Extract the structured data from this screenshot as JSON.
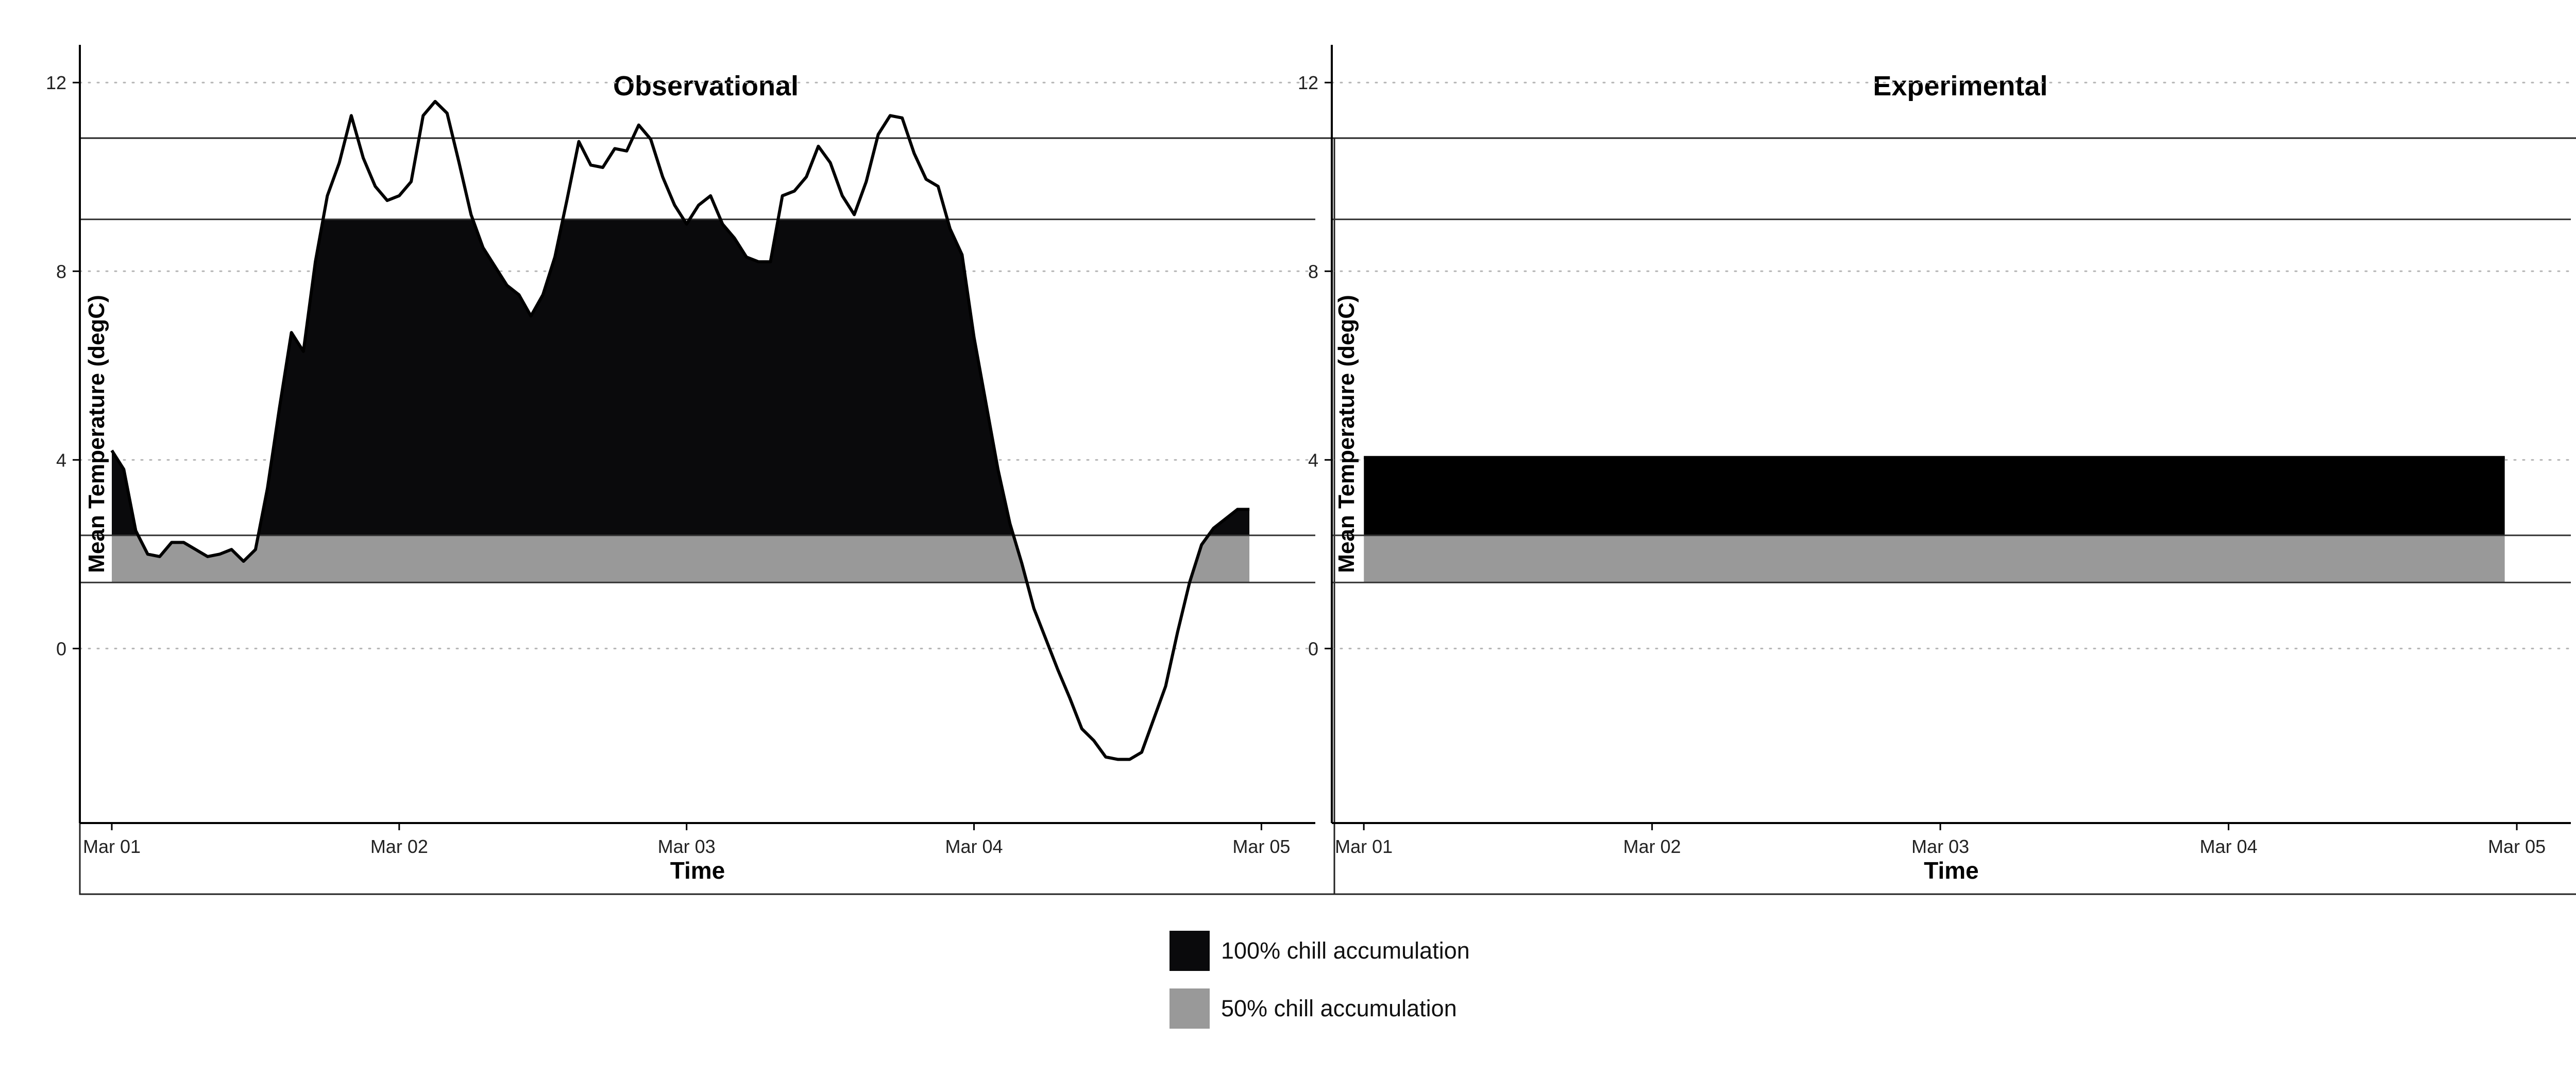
{
  "chart_data": [
    {
      "type": "area",
      "title": "Observational",
      "xlabel": "Time",
      "ylabel": "Mean Temperature (degC)",
      "xlim": [
        "2021-02-28T21:20",
        "2021-03-05T04:30"
      ],
      "ylim": [
        -3.7,
        12.8
      ],
      "x_ticks": [
        "Mar 01",
        "Mar 02",
        "Mar 03",
        "Mar 04",
        "Mar 05"
      ],
      "y_ticks": [
        0,
        4,
        8,
        12
      ],
      "grid": "horizontal dotted",
      "thresholds": [
        9.1,
        2.4,
        1.4
      ],
      "fills": [
        {
          "name": "100% chill accumulation",
          "between": [
            2.4,
            9.1
          ],
          "color": "#0a0a0c"
        },
        {
          "name": "50% chill accumulation",
          "between": [
            1.4,
            2.4
          ],
          "color": "#999999"
        }
      ],
      "series": [
        {
          "x": [
            "2021-03-01T00:00",
            "2021-03-01T01:00",
            "2021-03-01T02:00",
            "2021-03-01T03:00",
            "2021-03-01T04:00",
            "2021-03-01T05:00",
            "2021-03-01T06:00",
            "2021-03-01T07:00",
            "2021-03-01T08:00",
            "2021-03-01T09:00",
            "2021-03-01T10:00",
            "2021-03-01T11:00",
            "2021-03-01T12:00",
            "2021-03-01T13:00",
            "2021-03-01T14:00",
            "2021-03-01T15:00",
            "2021-03-01T16:00",
            "2021-03-01T17:00",
            "2021-03-01T18:00",
            "2021-03-01T19:00",
            "2021-03-01T20:00",
            "2021-03-01T21:00",
            "2021-03-01T22:00",
            "2021-03-01T23:00",
            "2021-03-02T00:00",
            "2021-03-02T01:00",
            "2021-03-02T02:00",
            "2021-03-02T03:00",
            "2021-03-02T04:00",
            "2021-03-02T05:00",
            "2021-03-02T06:00",
            "2021-03-02T07:00",
            "2021-03-02T08:00",
            "2021-03-02T09:00",
            "2021-03-02T10:00",
            "2021-03-02T11:00",
            "2021-03-02T12:00",
            "2021-03-02T13:00",
            "2021-03-02T14:00",
            "2021-03-02T15:00",
            "2021-03-02T16:00",
            "2021-03-02T17:00",
            "2021-03-02T18:00",
            "2021-03-02T19:00",
            "2021-03-02T20:00",
            "2021-03-02T21:00",
            "2021-03-02T22:00",
            "2021-03-02T23:00",
            "2021-03-03T00:00",
            "2021-03-03T01:00",
            "2021-03-03T02:00",
            "2021-03-03T03:00",
            "2021-03-03T04:00",
            "2021-03-03T05:00",
            "2021-03-03T06:00",
            "2021-03-03T07:00",
            "2021-03-03T08:00",
            "2021-03-03T09:00",
            "2021-03-03T10:00",
            "2021-03-03T11:00",
            "2021-03-03T12:00",
            "2021-03-03T13:00",
            "2021-03-03T14:00",
            "2021-03-03T15:00",
            "2021-03-03T16:00",
            "2021-03-03T17:00",
            "2021-03-03T18:00",
            "2021-03-03T19:00",
            "2021-03-03T20:00",
            "2021-03-03T21:00",
            "2021-03-03T22:00",
            "2021-03-03T23:00",
            "2021-03-04T00:00",
            "2021-03-04T01:00",
            "2021-03-04T02:00",
            "2021-03-04T03:00",
            "2021-03-04T04:00",
            "2021-03-04T05:00",
            "2021-03-04T06:00",
            "2021-03-04T07:00",
            "2021-03-04T08:00",
            "2021-03-04T09:00",
            "2021-03-04T10:00",
            "2021-03-04T11:00",
            "2021-03-04T12:00",
            "2021-03-04T13:00",
            "2021-03-04T14:00",
            "2021-03-04T15:00",
            "2021-03-04T16:00",
            "2021-03-04T17:00",
            "2021-03-04T18:00",
            "2021-03-04T19:00",
            "2021-03-04T20:00",
            "2021-03-04T21:00",
            "2021-03-04T22:00",
            "2021-03-04T23:00"
          ],
          "values": [
            4.2,
            3.8,
            2.5,
            2.0,
            1.95,
            2.25,
            2.25,
            2.1,
            1.95,
            2.0,
            2.1,
            1.85,
            2.1,
            3.4,
            5.1,
            6.7,
            6.3,
            8.2,
            9.6,
            10.3,
            11.3,
            10.4,
            9.8,
            9.5,
            9.6,
            9.9,
            11.3,
            11.6,
            11.35,
            10.3,
            9.2,
            8.5,
            8.1,
            7.7,
            7.5,
            7.05,
            7.5,
            8.3,
            9.5,
            10.75,
            10.25,
            10.2,
            10.6,
            10.55,
            11.1,
            10.8,
            10.0,
            9.4,
            9.0,
            9.4,
            9.6,
            9.0,
            8.7,
            8.3,
            8.2,
            8.2,
            9.6,
            9.7,
            10.0,
            10.65,
            10.3,
            9.6,
            9.2,
            9.9,
            10.9,
            11.3,
            11.25,
            10.5,
            9.95,
            9.8,
            8.9,
            8.35,
            6.6,
            5.2,
            3.8,
            2.65,
            1.8,
            0.85,
            0.2,
            -0.45,
            -1.05,
            -1.7,
            -1.95,
            -2.3,
            -2.35,
            -2.35,
            -2.2,
            -1.5,
            -0.8,
            0.35,
            1.4,
            2.2,
            2.55,
            2.75,
            2.95,
            2.95
          ]
        }
      ]
    },
    {
      "type": "area",
      "title": "Experimental",
      "xlabel": "Time",
      "ylabel": "Mean Temperature (degC)",
      "xlim": [
        "2021-02-28T21:20",
        "2021-03-05T04:30"
      ],
      "ylim": [
        -3.7,
        12.8
      ],
      "x_ticks": [
        "Mar 01",
        "Mar 02",
        "Mar 03",
        "Mar 04",
        "Mar 05"
      ],
      "y_ticks": [
        0,
        4,
        8,
        12
      ],
      "grid": "horizontal dotted",
      "thresholds": [
        9.1,
        2.4,
        1.4
      ],
      "fills": [
        {
          "name": "100% chill accumulation",
          "between": [
            2.4,
            9.1
          ],
          "color": "#000000"
        },
        {
          "name": "50% chill accumulation",
          "between": [
            1.4,
            2.4
          ],
          "color": "#999999"
        }
      ],
      "series": [
        {
          "x": [
            "2021-03-01T00:00",
            "2021-03-04T23:00"
          ],
          "values": [
            4.05,
            4.05
          ]
        }
      ]
    }
  ],
  "legend": {
    "items": [
      {
        "label": "100% chill accumulation",
        "color": "#0a0a0c"
      },
      {
        "label": "50% chill accumulation",
        "color": "#999999"
      }
    ]
  }
}
